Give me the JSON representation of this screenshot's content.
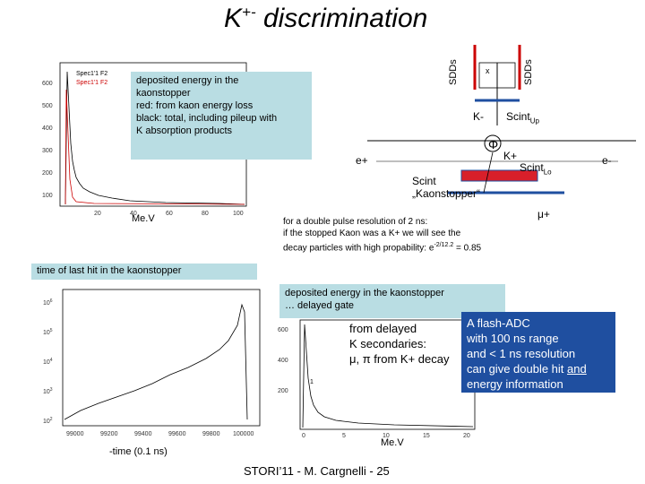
{
  "title": {
    "main": "K",
    "sup": "+-",
    "rest": " discrimination"
  },
  "top_plot": {
    "legend": [
      "Spec1'1 F2",
      "Spec1'1 F2"
    ],
    "y_ticks": [
      "600",
      "500",
      "400",
      "300",
      "200",
      "100"
    ],
    "x_ticks": [
      "20",
      "40",
      "60",
      "80",
      "100"
    ],
    "x_unit": "Me.V"
  },
  "note1": [
    "deposited energy in the",
    "kaonstopper",
    "red:  from kaon energy loss",
    "black: total, including pileup with",
    "K  absorption products"
  ],
  "diagram": {
    "sdd_left": "SDDs",
    "sdd_right": "SDDs",
    "x_label": "x",
    "k_minus": "K-",
    "scint_up": "Scint",
    "scint_up_sub": "Up",
    "phi": "Φ",
    "k_plus": "K+",
    "e_plus": "e+",
    "e_minus": "e-",
    "scint_lo": "Scint",
    "scint_lo_sub": "Lo",
    "scint_kaon_1": "Scint",
    "scint_kaon_2": "„Kaonstopper“",
    "mu_plus": "μ+"
  },
  "resolution_text": [
    "for a  double pulse resolution of 2 ns:",
    "if the stopped Kaon was a K+ we will see the",
    "decay  particles with high propability:  e",
    "-2/12.2",
    " = 0.85"
  ],
  "time_label": "time of last hit  in the kaonstopper",
  "bottom_left_plot": {
    "y_ticks": [
      "10",
      "10",
      "10",
      "10",
      "10"
    ],
    "y_exps": [
      "6",
      "5",
      "4",
      "3",
      "2"
    ],
    "x_ticks": [
      "99000",
      "99200",
      "99400",
      "99600",
      "99800",
      "100000"
    ],
    "x_label": "-time (0.1 ns)"
  },
  "delayed_note": [
    "deposited energy in the kaonstopper",
    "… delayed gate"
  ],
  "bottom_mid_plot": {
    "y_ticks": [
      "600",
      "400",
      "200"
    ],
    "x_ticks": [
      "0",
      "5",
      "10",
      "15",
      "20"
    ],
    "x_unit": "Me.V",
    "peak_label": "1"
  },
  "secondaries": [
    "from delayed",
    "K secondaries:",
    "μ,  π  from K+ decay"
  ],
  "flash_adc": [
    "A flash-ADC",
    "with 100 ns range",
    "and < 1 ns resolution",
    "can give double hit ",
    "and",
    "energy information"
  ],
  "footer": "STORI’11 - M. Cargnelli - 25"
}
